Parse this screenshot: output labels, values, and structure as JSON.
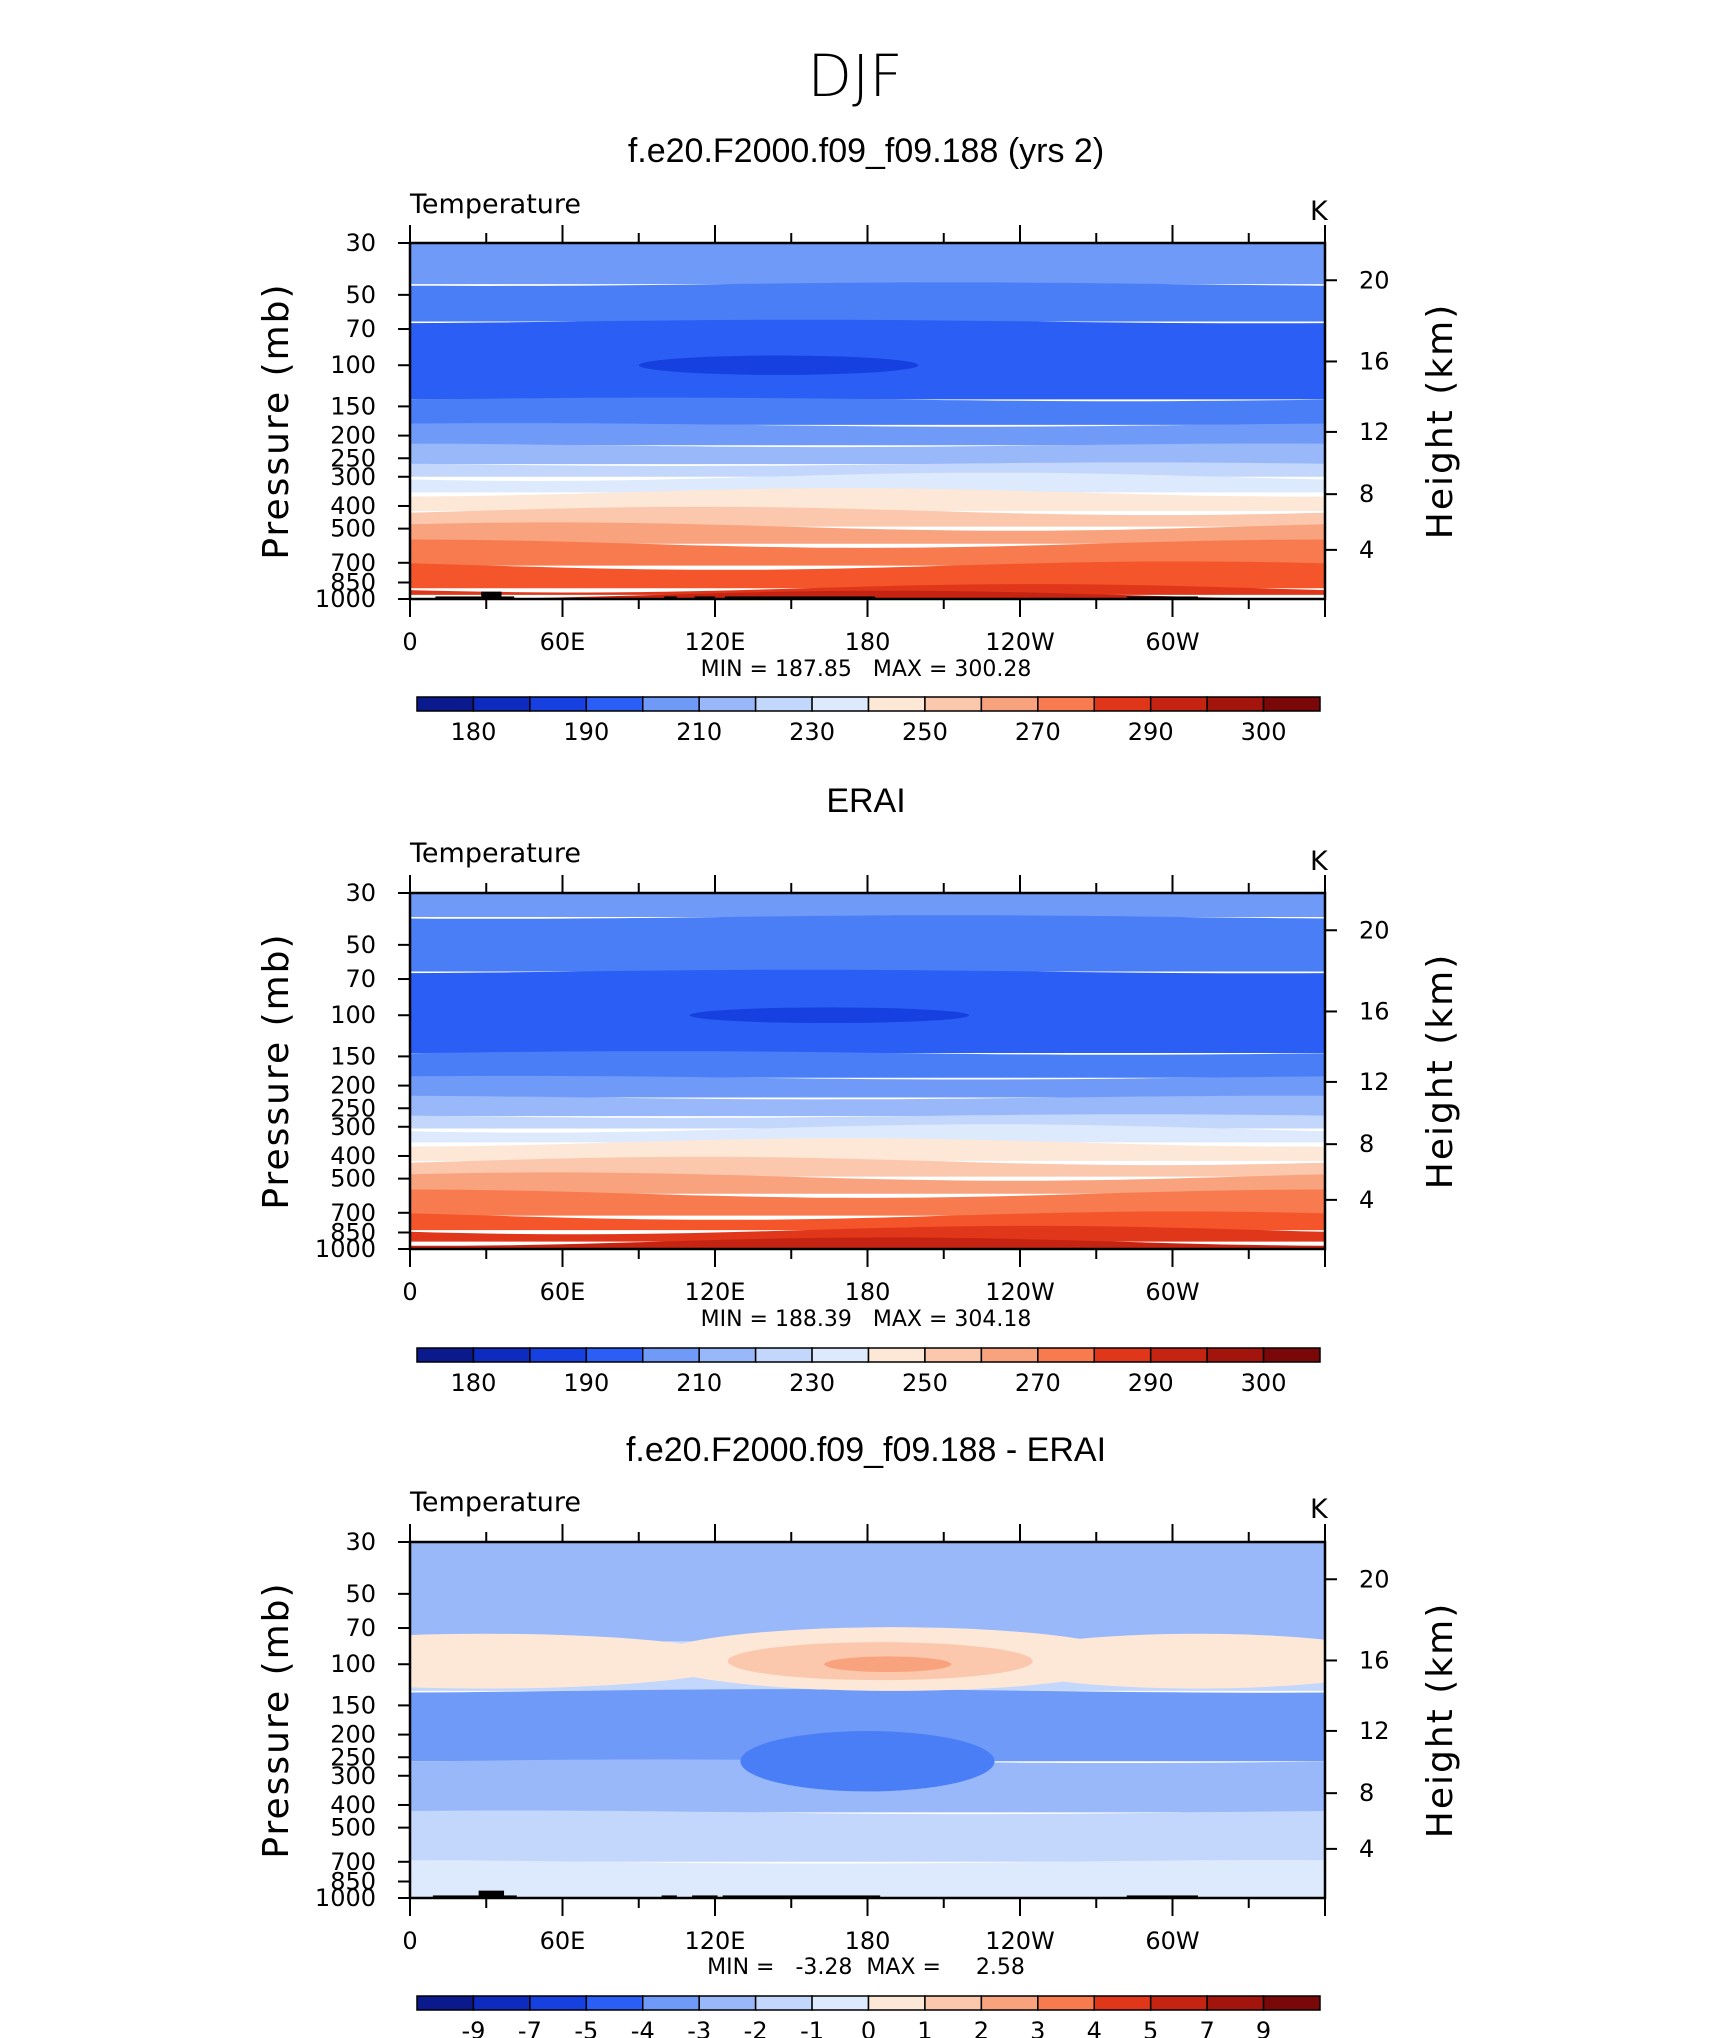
{
  "figure_title": "DJF",
  "colors": {
    "temperature_scale": [
      "#0a1a8c",
      "#0d2cbf",
      "#1640e0",
      "#2a5ef5",
      "#4a7ef7",
      "#6f9af8",
      "#98b8f9",
      "#c3d6fb",
      "#dde9fc",
      "#fde8d8",
      "#fcc8ad",
      "#f9a27e",
      "#f77b4f",
      "#f4552a",
      "#e0371a",
      "#c62412",
      "#a3150c",
      "#7a0808"
    ],
    "difference_scale": [
      "#0a1a8c",
      "#0d2cbf",
      "#1640e0",
      "#2a5ef5",
      "#4a7ef7",
      "#6f9af8",
      "#98b8f9",
      "#c3d6fb",
      "#dde9fc",
      "#fde8d8",
      "#fcc8ad",
      "#f9a27e",
      "#f77b4f",
      "#f4552a",
      "#e0371a",
      "#c62412",
      "#a3150c",
      "#7a0808"
    ],
    "topography": "#000000"
  },
  "chart_data": [
    {
      "type": "heatmap",
      "title": "f.e20.F2000.f09_f09.188 (yrs 2)",
      "variable_label": "Temperature",
      "units": "K",
      "xlabel": "",
      "ylabel": "Pressure (mb)",
      "y2label": "Height (km)",
      "x_ticks": [
        "0",
        "60E",
        "120E",
        "180",
        "120W",
        "60W"
      ],
      "y_ticks": [
        "30",
        "50",
        "70",
        "100",
        "150",
        "200",
        "250",
        "300",
        "400",
        "500",
        "700",
        "850",
        "1000"
      ],
      "y2_ticks": [
        "20",
        "16",
        "12",
        "8",
        "4"
      ],
      "xlim": [
        0,
        360
      ],
      "ylim": [
        1000,
        30
      ],
      "stats": "MIN = 187.85   MAX = 300.28",
      "colorbar_labels": [
        "180",
        "190",
        "210",
        "230",
        "250",
        "270",
        "290",
        "300"
      ],
      "levels": [
        {
          "p": 30,
          "color_index": 5
        },
        {
          "p": 45,
          "color_index": 4
        },
        {
          "p": 65,
          "color_index": 3
        },
        {
          "p": 140,
          "color_index": 4
        },
        {
          "p": 180,
          "color_index": 5
        },
        {
          "p": 220,
          "color_index": 6
        },
        {
          "p": 265,
          "color_index": 7
        },
        {
          "p": 300,
          "color_index": 8
        },
        {
          "p": 350,
          "color_index": 9
        },
        {
          "p": 420,
          "color_index": 10
        },
        {
          "p": 490,
          "color_index": 11
        },
        {
          "p": 580,
          "color_index": 12
        },
        {
          "p": 720,
          "color_index": 13
        },
        {
          "p": 900,
          "color_index": 14
        },
        {
          "p": 960,
          "color_index": 15
        }
      ],
      "anomaly_shapes": [
        {
          "lon": 145,
          "p": 100,
          "width_deg": 55,
          "height_p": 10,
          "color_index": 2
        }
      ],
      "topography": [
        {
          "lon1": 10,
          "lon2": 28,
          "p": 975
        },
        {
          "lon1": 28,
          "lon2": 36,
          "p": 930
        },
        {
          "lon1": 36,
          "lon2": 41,
          "p": 975
        },
        {
          "lon1": 100,
          "lon2": 105,
          "p": 975
        },
        {
          "lon1": 112,
          "lon2": 120,
          "p": 975
        },
        {
          "lon1": 124,
          "lon2": 183,
          "p": 975
        },
        {
          "lon1": 282,
          "lon2": 310,
          "p": 975
        }
      ]
    },
    {
      "type": "heatmap",
      "title": "ERAI",
      "variable_label": "Temperature",
      "units": "K",
      "xlabel": "",
      "ylabel": "Pressure (mb)",
      "y2label": "Height (km)",
      "x_ticks": [
        "0",
        "60E",
        "120E",
        "180",
        "120W",
        "60W"
      ],
      "y_ticks": [
        "30",
        "50",
        "70",
        "100",
        "150",
        "200",
        "250",
        "300",
        "400",
        "500",
        "700",
        "850",
        "1000"
      ],
      "y2_ticks": [
        "20",
        "16",
        "12",
        "8",
        "4"
      ],
      "xlim": [
        0,
        360
      ],
      "ylim": [
        1000,
        30
      ],
      "stats": "MIN = 188.39   MAX = 304.18",
      "colorbar_labels": [
        "180",
        "190",
        "210",
        "230",
        "250",
        "270",
        "290",
        "300"
      ],
      "levels": [
        {
          "p": 30,
          "color_index": 5
        },
        {
          "p": 38,
          "color_index": 4
        },
        {
          "p": 65,
          "color_index": 3
        },
        {
          "p": 145,
          "color_index": 4
        },
        {
          "p": 185,
          "color_index": 5
        },
        {
          "p": 225,
          "color_index": 6
        },
        {
          "p": 270,
          "color_index": 7
        },
        {
          "p": 305,
          "color_index": 8
        },
        {
          "p": 350,
          "color_index": 9
        },
        {
          "p": 420,
          "color_index": 10
        },
        {
          "p": 490,
          "color_index": 11
        },
        {
          "p": 580,
          "color_index": 12
        },
        {
          "p": 720,
          "color_index": 13
        },
        {
          "p": 830,
          "color_index": 14
        },
        {
          "p": 930,
          "color_index": 15
        }
      ],
      "anomaly_shapes": [
        {
          "lon": 165,
          "p": 100,
          "width_deg": 55,
          "height_p": 8,
          "color_index": 2
        }
      ],
      "topography": []
    },
    {
      "type": "heatmap",
      "title": "f.e20.F2000.f09_f09.188 - ERAI",
      "variable_label": "Temperature",
      "units": "K",
      "xlabel": "",
      "ylabel": "Pressure (mb)",
      "y2label": "Height (km)",
      "x_ticks": [
        "0",
        "60E",
        "120E",
        "180",
        "120W",
        "60W"
      ],
      "y_ticks": [
        "30",
        "50",
        "70",
        "100",
        "150",
        "200",
        "250",
        "300",
        "400",
        "500",
        "700",
        "850",
        "1000"
      ],
      "y2_ticks": [
        "20",
        "16",
        "12",
        "8",
        "4"
      ],
      "xlim": [
        0,
        360
      ],
      "ylim": [
        1000,
        30
      ],
      "stats": "MIN =   -3.28  MAX =     2.58",
      "colorbar_labels": [
        "-9",
        "-7",
        "-5",
        "-4",
        "-3",
        "-2",
        "-1",
        "0",
        "1",
        "2",
        "3",
        "4",
        "5",
        "7",
        "9"
      ],
      "levels": [
        {
          "p": 30,
          "color_index": 6
        },
        {
          "p": 80,
          "color_index": 7
        },
        {
          "p": 130,
          "color_index": 5
        },
        {
          "p": 260,
          "color_index": 6
        },
        {
          "p": 430,
          "color_index": 7
        },
        {
          "p": 700,
          "color_index": 8
        }
      ],
      "anomaly_shapes": [
        {
          "lon": 30,
          "p": 97,
          "width_deg": 100,
          "height_p": 30,
          "color_index": 9
        },
        {
          "lon": 310,
          "p": 97,
          "width_deg": 80,
          "height_p": 30,
          "color_index": 9
        },
        {
          "lon": 190,
          "p": 95,
          "width_deg": 95,
          "height_p": 35,
          "color_index": 9
        },
        {
          "lon": 185,
          "p": 97,
          "width_deg": 60,
          "height_p": 20,
          "color_index": 10
        },
        {
          "lon": 188,
          "p": 100,
          "width_deg": 25,
          "height_p": 8,
          "color_index": 11
        },
        {
          "lon": 180,
          "p": 260,
          "width_deg": 50,
          "height_p": 90,
          "color_index": 4
        }
      ],
      "topography": [
        {
          "lon1": 9,
          "lon2": 27,
          "p": 975
        },
        {
          "lon1": 27,
          "lon2": 37,
          "p": 930
        },
        {
          "lon1": 37,
          "lon2": 42,
          "p": 975
        },
        {
          "lon1": 99,
          "lon2": 105,
          "p": 975
        },
        {
          "lon1": 111,
          "lon2": 121,
          "p": 975
        },
        {
          "lon1": 123,
          "lon2": 185,
          "p": 975
        },
        {
          "lon1": 282,
          "lon2": 310,
          "p": 975
        }
      ]
    }
  ]
}
